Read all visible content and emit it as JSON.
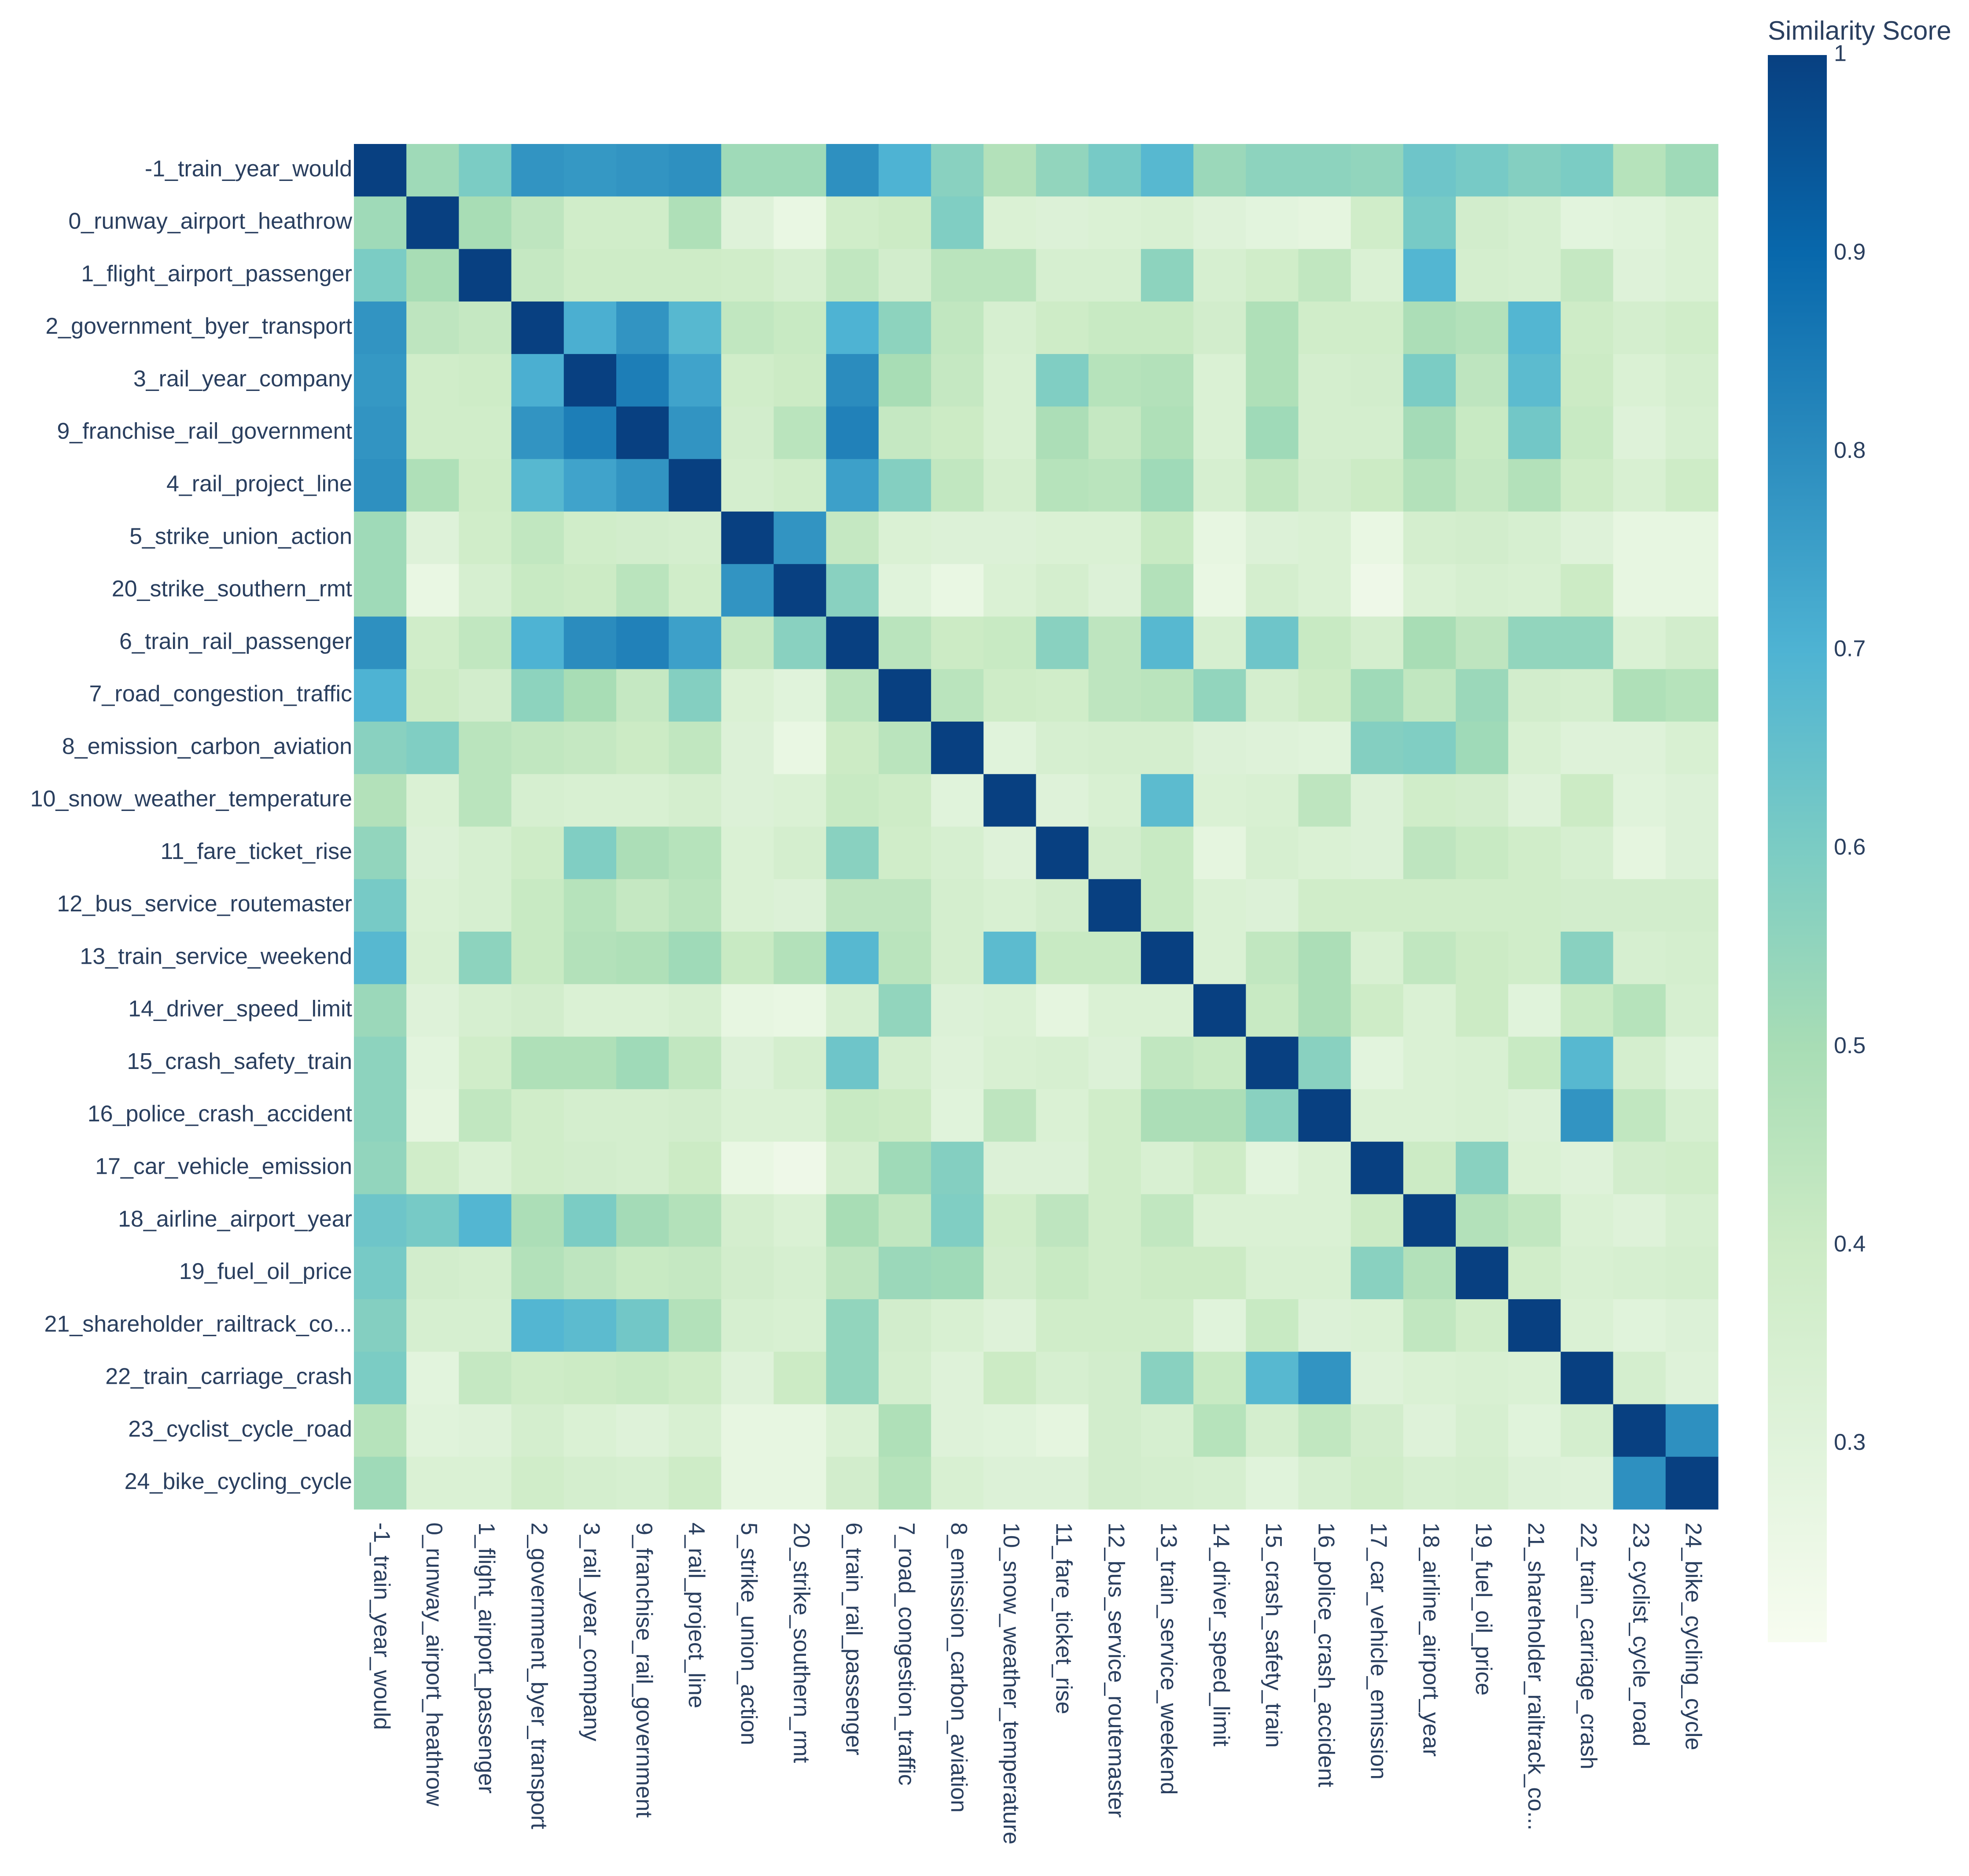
{
  "chart_data": {
    "type": "heatmap",
    "title": "",
    "xlabel": "",
    "ylabel": "",
    "colorscale": "GnBu",
    "colorbar": {
      "title": "Similarity Score",
      "range": [
        0.2,
        1.0
      ],
      "ticks": [
        0.3,
        0.4,
        0.5,
        0.6,
        0.7,
        0.8,
        0.9,
        1
      ],
      "tick_labels": [
        "0.3",
        "0.4",
        "0.5",
        "0.6",
        "0.7",
        "0.8",
        "0.9",
        "1"
      ]
    },
    "categories": [
      "-1_train_year_would",
      "0_runway_airport_heathrow",
      "1_flight_airport_passenger",
      "2_government_byer_transport",
      "3_rail_year_company",
      "9_franchise_rail_government",
      "4_rail_project_line",
      "5_strike_union_action",
      "20_strike_southern_rmt",
      "6_train_rail_passenger",
      "7_road_congestion_traffic",
      "8_emission_carbon_aviation",
      "10_snow_weather_temperature",
      "11_fare_ticket_rise",
      "12_bus_service_routemaster",
      "13_train_service_weekend",
      "14_driver_speed_limit",
      "15_crash_safety_train",
      "16_police_crash_accident",
      "17_car_vehicle_emission",
      "18_airline_airport_year",
      "19_fuel_oil_price",
      "21_shareholder_railtrack_co...",
      "22_train_carriage_crash",
      "23_cyclist_cycle_road",
      "24_bike_cycling_cycle"
    ],
    "values": [
      [
        1.0,
        0.52,
        0.6,
        0.78,
        0.77,
        0.78,
        0.79,
        0.52,
        0.52,
        0.79,
        0.7,
        0.57,
        0.47,
        0.55,
        0.61,
        0.68,
        0.53,
        0.56,
        0.56,
        0.55,
        0.63,
        0.61,
        0.58,
        0.6,
        0.46,
        0.52
      ],
      [
        0.52,
        1.0,
        0.5,
        0.44,
        0.38,
        0.38,
        0.48,
        0.31,
        0.26,
        0.38,
        0.4,
        0.59,
        0.33,
        0.32,
        0.33,
        0.34,
        0.31,
        0.29,
        0.28,
        0.38,
        0.61,
        0.37,
        0.35,
        0.29,
        0.3,
        0.33
      ],
      [
        0.6,
        0.5,
        1.0,
        0.42,
        0.39,
        0.39,
        0.39,
        0.38,
        0.35,
        0.43,
        0.37,
        0.45,
        0.45,
        0.35,
        0.35,
        0.56,
        0.35,
        0.38,
        0.43,
        0.33,
        0.69,
        0.36,
        0.35,
        0.42,
        0.31,
        0.33
      ],
      [
        0.78,
        0.44,
        0.42,
        1.0,
        0.71,
        0.78,
        0.68,
        0.43,
        0.41,
        0.7,
        0.56,
        0.43,
        0.35,
        0.39,
        0.41,
        0.41,
        0.37,
        0.48,
        0.38,
        0.38,
        0.49,
        0.47,
        0.69,
        0.39,
        0.36,
        0.38
      ],
      [
        0.77,
        0.38,
        0.39,
        0.71,
        1.0,
        0.84,
        0.74,
        0.38,
        0.4,
        0.8,
        0.5,
        0.42,
        0.34,
        0.59,
        0.46,
        0.47,
        0.33,
        0.48,
        0.36,
        0.37,
        0.6,
        0.44,
        0.67,
        0.4,
        0.33,
        0.36
      ],
      [
        0.78,
        0.38,
        0.38,
        0.78,
        0.84,
        1.0,
        0.78,
        0.37,
        0.45,
        0.83,
        0.42,
        0.4,
        0.34,
        0.49,
        0.42,
        0.48,
        0.33,
        0.52,
        0.36,
        0.36,
        0.51,
        0.41,
        0.62,
        0.41,
        0.31,
        0.35
      ],
      [
        0.79,
        0.48,
        0.39,
        0.68,
        0.74,
        0.78,
        1.0,
        0.36,
        0.38,
        0.75,
        0.58,
        0.43,
        0.36,
        0.46,
        0.45,
        0.52,
        0.35,
        0.43,
        0.37,
        0.4,
        0.47,
        0.42,
        0.47,
        0.39,
        0.34,
        0.39
      ],
      [
        0.52,
        0.31,
        0.38,
        0.43,
        0.38,
        0.37,
        0.36,
        1.0,
        0.78,
        0.42,
        0.33,
        0.32,
        0.32,
        0.33,
        0.33,
        0.41,
        0.27,
        0.32,
        0.33,
        0.26,
        0.36,
        0.37,
        0.35,
        0.31,
        0.27,
        0.27
      ],
      [
        0.52,
        0.26,
        0.35,
        0.41,
        0.4,
        0.45,
        0.38,
        0.78,
        1.0,
        0.57,
        0.3,
        0.26,
        0.33,
        0.36,
        0.32,
        0.47,
        0.26,
        0.36,
        0.33,
        0.24,
        0.33,
        0.35,
        0.34,
        0.4,
        0.27,
        0.27
      ],
      [
        0.79,
        0.38,
        0.43,
        0.7,
        0.8,
        0.83,
        0.75,
        0.42,
        0.57,
        1.0,
        0.45,
        0.4,
        0.41,
        0.57,
        0.44,
        0.68,
        0.35,
        0.63,
        0.41,
        0.36,
        0.5,
        0.44,
        0.55,
        0.55,
        0.33,
        0.37
      ],
      [
        0.7,
        0.4,
        0.37,
        0.56,
        0.5,
        0.42,
        0.58,
        0.33,
        0.3,
        0.45,
        1.0,
        0.45,
        0.39,
        0.38,
        0.44,
        0.45,
        0.55,
        0.36,
        0.4,
        0.52,
        0.43,
        0.53,
        0.37,
        0.36,
        0.48,
        0.46
      ],
      [
        0.57,
        0.59,
        0.45,
        0.43,
        0.42,
        0.4,
        0.43,
        0.32,
        0.26,
        0.4,
        0.45,
        1.0,
        0.3,
        0.35,
        0.36,
        0.36,
        0.32,
        0.31,
        0.3,
        0.58,
        0.59,
        0.52,
        0.34,
        0.31,
        0.31,
        0.34
      ],
      [
        0.47,
        0.33,
        0.45,
        0.35,
        0.34,
        0.34,
        0.36,
        0.32,
        0.33,
        0.41,
        0.39,
        0.3,
        1.0,
        0.31,
        0.34,
        0.67,
        0.33,
        0.34,
        0.44,
        0.32,
        0.38,
        0.37,
        0.31,
        0.4,
        0.3,
        0.32
      ],
      [
        0.55,
        0.32,
        0.35,
        0.39,
        0.59,
        0.49,
        0.46,
        0.33,
        0.36,
        0.57,
        0.38,
        0.35,
        0.31,
        1.0,
        0.37,
        0.41,
        0.28,
        0.35,
        0.33,
        0.32,
        0.44,
        0.41,
        0.38,
        0.35,
        0.28,
        0.32
      ],
      [
        0.61,
        0.33,
        0.35,
        0.41,
        0.46,
        0.42,
        0.45,
        0.33,
        0.32,
        0.44,
        0.44,
        0.36,
        0.34,
        0.37,
        1.0,
        0.41,
        0.33,
        0.32,
        0.38,
        0.38,
        0.38,
        0.38,
        0.38,
        0.37,
        0.37,
        0.37
      ],
      [
        0.68,
        0.34,
        0.56,
        0.41,
        0.47,
        0.48,
        0.52,
        0.41,
        0.47,
        0.68,
        0.45,
        0.36,
        0.67,
        0.41,
        0.41,
        1.0,
        0.33,
        0.43,
        0.49,
        0.34,
        0.43,
        0.4,
        0.38,
        0.57,
        0.35,
        0.36
      ],
      [
        0.53,
        0.31,
        0.35,
        0.37,
        0.33,
        0.33,
        0.35,
        0.27,
        0.26,
        0.35,
        0.55,
        0.32,
        0.33,
        0.28,
        0.33,
        0.33,
        1.0,
        0.41,
        0.49,
        0.39,
        0.33,
        0.4,
        0.3,
        0.41,
        0.46,
        0.35
      ],
      [
        0.56,
        0.29,
        0.38,
        0.48,
        0.48,
        0.52,
        0.43,
        0.32,
        0.36,
        0.63,
        0.36,
        0.31,
        0.34,
        0.35,
        0.32,
        0.43,
        0.41,
        1.0,
        0.57,
        0.29,
        0.33,
        0.34,
        0.41,
        0.68,
        0.36,
        0.3
      ],
      [
        0.56,
        0.28,
        0.43,
        0.38,
        0.36,
        0.36,
        0.37,
        0.33,
        0.33,
        0.41,
        0.4,
        0.3,
        0.44,
        0.33,
        0.38,
        0.49,
        0.49,
        0.57,
        1.0,
        0.33,
        0.33,
        0.34,
        0.32,
        0.78,
        0.43,
        0.35
      ],
      [
        0.55,
        0.38,
        0.33,
        0.38,
        0.37,
        0.36,
        0.4,
        0.26,
        0.24,
        0.36,
        0.52,
        0.58,
        0.32,
        0.32,
        0.38,
        0.34,
        0.39,
        0.29,
        0.33,
        1.0,
        0.4,
        0.57,
        0.33,
        0.31,
        0.37,
        0.38
      ],
      [
        0.63,
        0.61,
        0.69,
        0.49,
        0.6,
        0.51,
        0.47,
        0.36,
        0.33,
        0.5,
        0.43,
        0.59,
        0.38,
        0.44,
        0.38,
        0.43,
        0.33,
        0.33,
        0.33,
        0.4,
        1.0,
        0.47,
        0.43,
        0.33,
        0.31,
        0.35
      ],
      [
        0.61,
        0.37,
        0.36,
        0.47,
        0.44,
        0.41,
        0.42,
        0.37,
        0.35,
        0.44,
        0.53,
        0.52,
        0.37,
        0.41,
        0.38,
        0.4,
        0.4,
        0.34,
        0.34,
        0.57,
        0.47,
        1.0,
        0.38,
        0.34,
        0.35,
        0.36
      ],
      [
        0.58,
        0.35,
        0.35,
        0.69,
        0.67,
        0.62,
        0.47,
        0.35,
        0.34,
        0.55,
        0.37,
        0.34,
        0.31,
        0.38,
        0.38,
        0.38,
        0.3,
        0.41,
        0.32,
        0.33,
        0.43,
        0.38,
        1.0,
        0.33,
        0.3,
        0.32
      ],
      [
        0.6,
        0.29,
        0.42,
        0.39,
        0.4,
        0.41,
        0.39,
        0.31,
        0.4,
        0.55,
        0.36,
        0.31,
        0.4,
        0.35,
        0.37,
        0.57,
        0.41,
        0.68,
        0.78,
        0.31,
        0.33,
        0.34,
        0.33,
        1.0,
        0.36,
        0.31
      ],
      [
        0.46,
        0.3,
        0.31,
        0.36,
        0.33,
        0.31,
        0.34,
        0.27,
        0.27,
        0.33,
        0.48,
        0.31,
        0.3,
        0.28,
        0.37,
        0.35,
        0.46,
        0.36,
        0.43,
        0.37,
        0.31,
        0.35,
        0.3,
        0.36,
        1.0,
        0.79
      ],
      [
        0.52,
        0.33,
        0.33,
        0.38,
        0.36,
        0.35,
        0.39,
        0.27,
        0.27,
        0.37,
        0.46,
        0.34,
        0.32,
        0.32,
        0.37,
        0.36,
        0.35,
        0.3,
        0.35,
        0.38,
        0.35,
        0.36,
        0.32,
        0.31,
        0.79,
        1.0
      ]
    ]
  }
}
